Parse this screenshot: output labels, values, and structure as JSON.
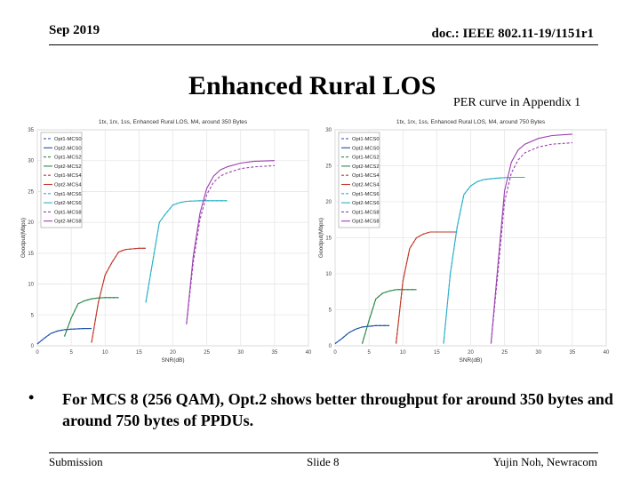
{
  "header": {
    "date": "Sep 2019",
    "doc": "doc.: IEEE 802.11-19/1151r1"
  },
  "slide": {
    "title": "Enhanced Rural LOS",
    "subtitle": "PER curve in Appendix 1",
    "bullet_symbol": "•",
    "bullet_text": "For MCS 8 (256 QAM), Opt.2 shows better throughput for around 350 bytes and around 750 bytes of PPDUs."
  },
  "footer": {
    "left": "Submission",
    "center": "Slide 8",
    "right": "Yujin Noh, Newracom"
  },
  "colors": {
    "Opt1-MCS0": "#1f4fa8",
    "Opt2-MCS0": "#1f4fa8",
    "Opt1-MCS2": "#2a8a4a",
    "Opt2-MCS2": "#2a8a4a",
    "Opt1-MCS4": "#c0392b",
    "Opt2-MCS4": "#c0392b",
    "Opt1-MCS6": "#2ab0c8",
    "Opt2-MCS6": "#2ab0c8",
    "Opt1-MCS8": "#9b3fb0",
    "Opt2-MCS8": "#9b3fb0"
  },
  "chart_data": [
    {
      "type": "line",
      "title": "1tx, 1rx, 1ss, Enhanced Rural LOS, M4, around 350 Bytes",
      "xlabel": "SNR(dB)",
      "ylabel": "Goodput(Mbps)",
      "xlim": [
        0,
        40
      ],
      "ylim": [
        0,
        35
      ],
      "xticks": [
        "0",
        "5",
        "10",
        "15",
        "20",
        "25",
        "30",
        "35",
        "40"
      ],
      "yticks": [
        "0",
        "5",
        "10",
        "15",
        "20",
        "25",
        "30",
        "35"
      ],
      "grid": true,
      "legend": "top-left",
      "series": [
        {
          "name": "Opt1-MCS0",
          "dash": true,
          "x": [
            0,
            1,
            2,
            3,
            4,
            5,
            6,
            7,
            8
          ],
          "y": [
            0.3,
            1.2,
            2.0,
            2.4,
            2.6,
            2.7,
            2.75,
            2.8,
            2.8
          ]
        },
        {
          "name": "Opt2-MCS0",
          "dash": false,
          "x": [
            0,
            1,
            2,
            3,
            4,
            5,
            6,
            7,
            8
          ],
          "y": [
            0.3,
            1.2,
            2.0,
            2.4,
            2.6,
            2.7,
            2.75,
            2.8,
            2.8
          ]
        },
        {
          "name": "Opt1-MCS2",
          "dash": true,
          "x": [
            4,
            5,
            6,
            7,
            8,
            9,
            10,
            11,
            12
          ],
          "y": [
            1.5,
            4.5,
            6.8,
            7.3,
            7.6,
            7.75,
            7.8,
            7.8,
            7.8
          ]
        },
        {
          "name": "Opt2-MCS2",
          "dash": false,
          "x": [
            4,
            5,
            6,
            7,
            8,
            9,
            10,
            11,
            12
          ],
          "y": [
            1.5,
            4.5,
            6.8,
            7.3,
            7.6,
            7.75,
            7.8,
            7.8,
            7.8
          ]
        },
        {
          "name": "Opt1-MCS4",
          "dash": true,
          "x": [
            8,
            9,
            10,
            11,
            12,
            13,
            14,
            15,
            16
          ],
          "y": [
            0.5,
            7.0,
            11.5,
            13.5,
            15.2,
            15.6,
            15.7,
            15.8,
            15.8
          ]
        },
        {
          "name": "Opt2-MCS4",
          "dash": false,
          "x": [
            8,
            9,
            10,
            11,
            12,
            13,
            14,
            15,
            16
          ],
          "y": [
            0.5,
            7.0,
            11.5,
            13.5,
            15.2,
            15.6,
            15.7,
            15.8,
            15.8
          ]
        },
        {
          "name": "Opt1-MCS6",
          "dash": true,
          "x": [
            16,
            17,
            18,
            19,
            20,
            21,
            22,
            24,
            26,
            28
          ],
          "y": [
            7.0,
            13.5,
            20.0,
            21.5,
            22.8,
            23.2,
            23.4,
            23.5,
            23.5,
            23.5
          ]
        },
        {
          "name": "Opt2-MCS6",
          "dash": false,
          "x": [
            16,
            17,
            18,
            19,
            20,
            21,
            22,
            24,
            26,
            28
          ],
          "y": [
            7.0,
            13.5,
            20.0,
            21.5,
            22.8,
            23.2,
            23.4,
            23.5,
            23.5,
            23.5
          ]
        },
        {
          "name": "Opt1-MCS8",
          "dash": true,
          "x": [
            22,
            23,
            24,
            25,
            26,
            27,
            28,
            30,
            32,
            35
          ],
          "y": [
            3.5,
            13.5,
            20.5,
            24.5,
            26.5,
            27.5,
            28.0,
            28.7,
            29.0,
            29.2
          ]
        },
        {
          "name": "Opt2-MCS8",
          "dash": false,
          "x": [
            22,
            23,
            24,
            25,
            26,
            27,
            28,
            30,
            32,
            35
          ],
          "y": [
            3.5,
            14.5,
            21.5,
            25.5,
            27.5,
            28.5,
            29.0,
            29.6,
            29.9,
            30.0
          ]
        }
      ]
    },
    {
      "type": "line",
      "title": "1tx, 1rx, 1ss, Enhanced Rural LOS, M4, around 750 Bytes",
      "xlabel": "SNR(dB)",
      "ylabel": "Goodput(Mbps)",
      "xlim": [
        0,
        40
      ],
      "ylim": [
        0,
        30
      ],
      "xticks": [
        "0",
        "5",
        "10",
        "15",
        "20",
        "25",
        "30",
        "35",
        "40"
      ],
      "yticks": [
        "0",
        "5",
        "10",
        "15",
        "20",
        "25",
        "30"
      ],
      "grid": true,
      "legend": "top-left",
      "series": [
        {
          "name": "Opt1-MCS0",
          "dash": true,
          "x": [
            0,
            1,
            2,
            3,
            4,
            5,
            6,
            7,
            8
          ],
          "y": [
            0.3,
            1.0,
            1.8,
            2.3,
            2.6,
            2.7,
            2.8,
            2.8,
            2.8
          ]
        },
        {
          "name": "Opt2-MCS0",
          "dash": false,
          "x": [
            0,
            1,
            2,
            3,
            4,
            5,
            6,
            7,
            8
          ],
          "y": [
            0.3,
            1.0,
            1.8,
            2.3,
            2.6,
            2.7,
            2.8,
            2.8,
            2.8
          ]
        },
        {
          "name": "Opt1-MCS2",
          "dash": true,
          "x": [
            4,
            5,
            6,
            7,
            8,
            9,
            10,
            11,
            12
          ],
          "y": [
            0.3,
            3.5,
            6.5,
            7.3,
            7.6,
            7.8,
            7.8,
            7.8,
            7.8
          ]
        },
        {
          "name": "Opt2-MCS2",
          "dash": false,
          "x": [
            4,
            5,
            6,
            7,
            8,
            9,
            10,
            11,
            12
          ],
          "y": [
            0.3,
            3.5,
            6.5,
            7.3,
            7.6,
            7.8,
            7.8,
            7.8,
            7.8
          ]
        },
        {
          "name": "Opt1-MCS4",
          "dash": true,
          "x": [
            9,
            10,
            11,
            12,
            13,
            14,
            15,
            16,
            18
          ],
          "y": [
            0.3,
            9.0,
            13.5,
            15.0,
            15.5,
            15.8,
            15.8,
            15.8,
            15.8
          ]
        },
        {
          "name": "Opt2-MCS4",
          "dash": false,
          "x": [
            9,
            10,
            11,
            12,
            13,
            14,
            15,
            16,
            18
          ],
          "y": [
            0.3,
            9.0,
            13.5,
            15.0,
            15.5,
            15.8,
            15.8,
            15.8,
            15.8
          ]
        },
        {
          "name": "Opt1-MCS6",
          "dash": true,
          "x": [
            16,
            17,
            18,
            19,
            20,
            21,
            22,
            24,
            26,
            28
          ],
          "y": [
            0.3,
            10.0,
            16.5,
            21.0,
            22.2,
            22.8,
            23.1,
            23.3,
            23.4,
            23.4
          ]
        },
        {
          "name": "Opt2-MCS6",
          "dash": false,
          "x": [
            16,
            17,
            18,
            19,
            20,
            21,
            22,
            24,
            26,
            28
          ],
          "y": [
            0.3,
            10.0,
            16.5,
            21.0,
            22.2,
            22.8,
            23.1,
            23.3,
            23.4,
            23.4
          ]
        },
        {
          "name": "Opt1-MCS8",
          "dash": true,
          "x": [
            23,
            24,
            25,
            26,
            27,
            28,
            30,
            32,
            35
          ],
          "y": [
            0.3,
            10.0,
            20.0,
            24.0,
            25.8,
            26.8,
            27.6,
            28.0,
            28.2
          ]
        },
        {
          "name": "Opt2-MCS8",
          "dash": false,
          "x": [
            23,
            24,
            25,
            26,
            27,
            28,
            30,
            32,
            35
          ],
          "y": [
            0.3,
            11.0,
            21.5,
            25.5,
            27.2,
            28.0,
            28.8,
            29.2,
            29.4
          ]
        }
      ]
    }
  ]
}
